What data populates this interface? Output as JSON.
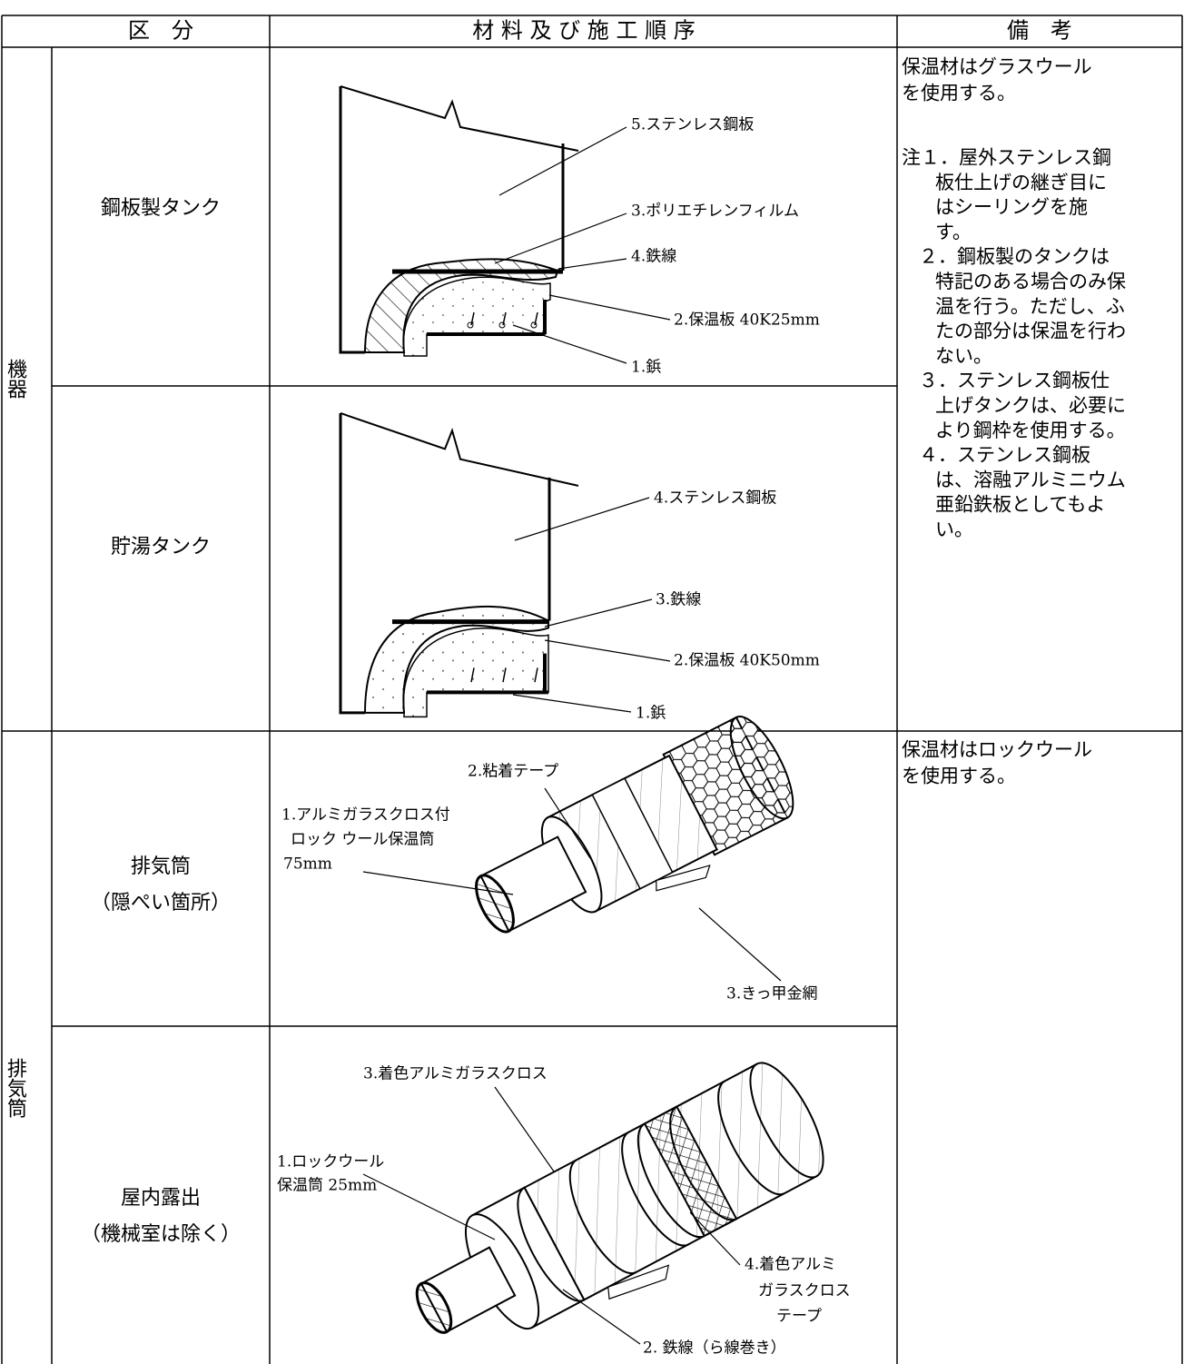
{
  "header": {
    "division": "区　分",
    "materials": "材 料 及 び 施 工 順 序",
    "remarks": "備　考"
  },
  "groups": [
    {
      "label": "機器",
      "rows": [
        {
          "name": [
            "鋼板製タンク"
          ],
          "labels": [
            [
              "5.ステンレス鋼板"
            ],
            [
              "3.ポリエチレンフィルム"
            ],
            [
              "4.鉄線"
            ],
            [
              "2.保温板 40K25mm"
            ],
            [
              "1.鋲"
            ]
          ]
        },
        {
          "name": [
            "貯湯タンク"
          ],
          "labels": [
            [
              "4.ステンレス鋼板"
            ],
            [
              "3.鉄線"
            ],
            [
              "2.保温板 40K50mm"
            ],
            [
              "1.鋲"
            ]
          ]
        }
      ],
      "remarks": [
        [
          "保温材はグラスウール",
          "を使用する。"
        ],
        [
          "注１．屋外ステンレス鋼",
          "板仕上げの継ぎ目に",
          "はシーリングを施",
          "す。"
        ],
        [
          "２．鋼板製のタンクは",
          "特記のある場合のみ保",
          "温を行う。ただし、ふ",
          "たの部分は保温を行わ",
          "ない。"
        ],
        [
          "３．ステンレス鋼板仕",
          "上げタンクは、必要に",
          "より鋼枠を使用する。"
        ],
        [
          "４．ステンレス鋼板",
          "は、溶融アルミニウム",
          "亜鉛鉄板としてもよ",
          "い。"
        ]
      ]
    },
    {
      "label": "排気筒",
      "rows": [
        {
          "name": [
            "排気筒",
            "（隠ぺい箇所）"
          ],
          "labels": [
            [
              "2.粘着テープ"
            ],
            [
              "1.アルミガラスクロス付",
              "ロック ウール保温筒",
              "75mm"
            ],
            [
              "3.きっ甲金網"
            ]
          ]
        },
        {
          "name": [
            "屋内露出",
            "（機械室は除く）"
          ],
          "labels": [
            [
              "3.着色アルミガラスクロス"
            ],
            [
              "1.ロックウール",
              "保温筒 25mm"
            ],
            [
              "4.着色アルミ",
              "ガラスクロス",
              "テープ"
            ],
            [
              "2. 鉄線（ら線巻き）"
            ]
          ]
        }
      ],
      "remarks": [
        [
          "保温材はロックウール",
          "を使用する。"
        ]
      ]
    }
  ]
}
